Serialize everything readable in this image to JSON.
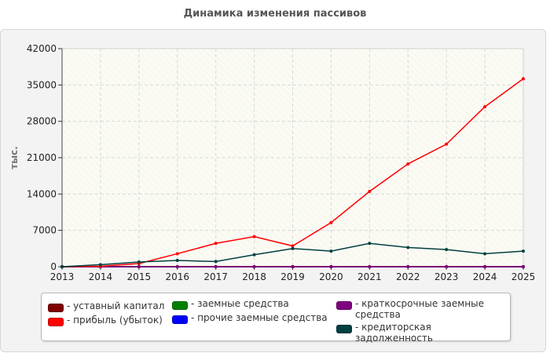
{
  "chart_data": {
    "type": "line",
    "title": "Динамика изменения пассивов",
    "ylabel": "тыс.",
    "xlabel": "",
    "ylim": [
      0,
      42000
    ],
    "yticks": [
      0,
      7000,
      14000,
      21000,
      28000,
      35000,
      42000
    ],
    "x": [
      "2013",
      "2014",
      "2015",
      "2016",
      "2017",
      "2018",
      "2019",
      "2020",
      "2021",
      "2022",
      "2023",
      "2024",
      "2025"
    ],
    "grid": true,
    "legend_position": "bottom",
    "series": [
      {
        "name": "- уставный капитал",
        "color": "#800000",
        "values": [
          10,
          10,
          10,
          10,
          10,
          10,
          10,
          10,
          10,
          10,
          10,
          10,
          10
        ]
      },
      {
        "name": "- прибыль (убыток)",
        "color": "#ff0000",
        "values": [
          0,
          100,
          600,
          2500,
          4500,
          5800,
          4000,
          8500,
          14500,
          19800,
          23600,
          30800,
          36200
        ]
      },
      {
        "name": "- заемные средства",
        "color": "#008000",
        "values": [
          0,
          0,
          0,
          0,
          0,
          0,
          0,
          0,
          0,
          0,
          0,
          0,
          0
        ]
      },
      {
        "name": "- прочие заемные средства",
        "color": "#0000ff",
        "values": [
          0,
          0,
          0,
          0,
          0,
          0,
          0,
          0,
          0,
          0,
          0,
          0,
          0
        ]
      },
      {
        "name": "- краткосрочные заемные средства",
        "color": "#800080",
        "values": [
          0,
          0,
          0,
          0,
          0,
          0,
          0,
          0,
          0,
          0,
          0,
          0,
          0
        ]
      },
      {
        "name": "- кредиторская задолженность",
        "color": "#004040",
        "values": [
          0,
          400,
          900,
          1200,
          1000,
          2300,
          3500,
          3000,
          4500,
          3700,
          3300,
          2500,
          3000
        ]
      }
    ]
  }
}
